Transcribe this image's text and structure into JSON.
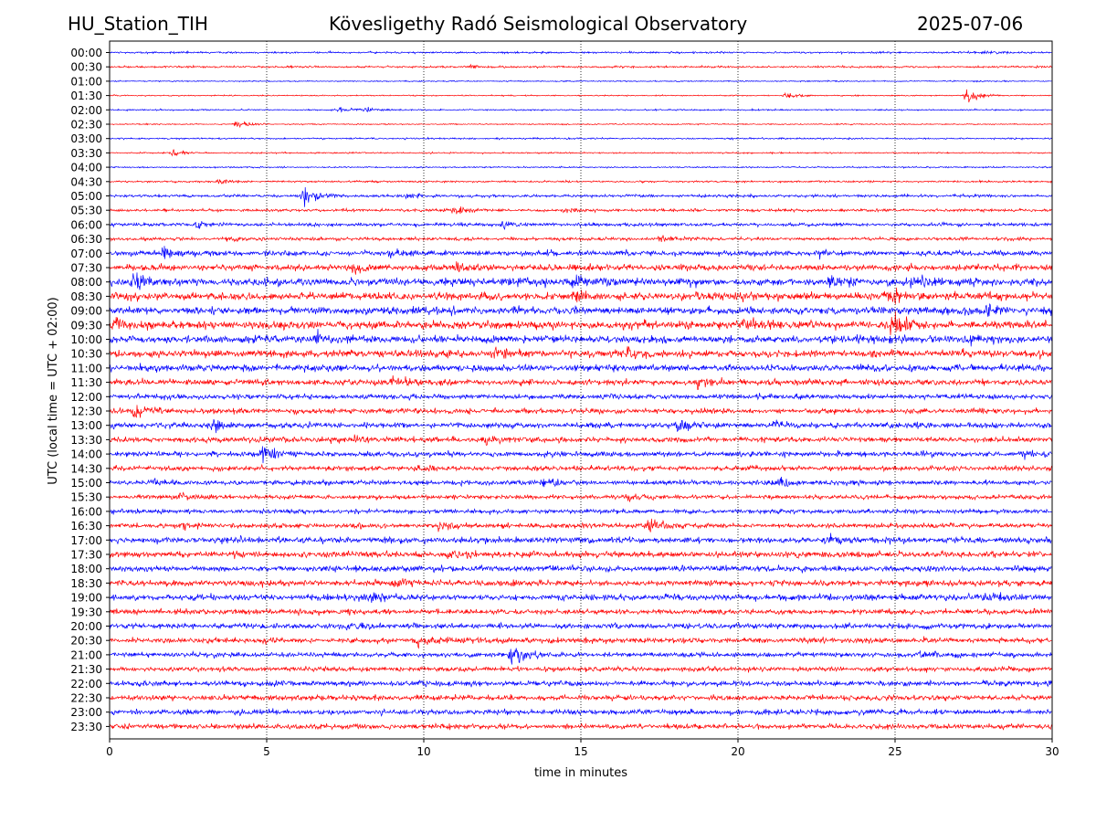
{
  "header": {
    "station": "HU_Station_TIH",
    "observatory": "Kövesligethy Radó Seismological Observatory",
    "date": "2025-07-06"
  },
  "chart_data": {
    "type": "line",
    "title": "Kövesligethy Radó Seismological Observatory",
    "xlabel": "time in minutes",
    "ylabel": "UTC (local time = UTC + 02:00)",
    "xlim": [
      0,
      30
    ],
    "xticks": [
      0,
      5,
      10,
      15,
      20,
      25,
      30
    ],
    "xtick_labels": [
      "0",
      "5",
      "10",
      "15",
      "20",
      "25",
      "30"
    ],
    "grid": "vertical dotted at 5, 10, 15, 20, 25",
    "row_labels": [
      "00:00",
      "00:30",
      "01:00",
      "01:30",
      "02:00",
      "02:30",
      "03:00",
      "03:30",
      "04:00",
      "04:30",
      "05:00",
      "05:30",
      "06:00",
      "06:30",
      "07:00",
      "07:30",
      "08:00",
      "08:30",
      "09:00",
      "09:30",
      "10:00",
      "10:30",
      "11:00",
      "11:30",
      "12:00",
      "12:30",
      "13:00",
      "13:30",
      "14:00",
      "14:30",
      "15:00",
      "15:30",
      "16:00",
      "16:30",
      "17:00",
      "17:30",
      "18:00",
      "18:30",
      "19:00",
      "19:30",
      "20:00",
      "20:30",
      "21:00",
      "21:30",
      "22:00",
      "22:30",
      "23:00",
      "23:30"
    ],
    "colors": [
      "#0000ff",
      "#ff0000"
    ],
    "noise_amplitude": [
      0.08,
      0.08,
      0.05,
      0.05,
      0.06,
      0.05,
      0.07,
      0.06,
      0.06,
      0.08,
      0.12,
      0.12,
      0.14,
      0.14,
      0.22,
      0.25,
      0.32,
      0.32,
      0.32,
      0.32,
      0.3,
      0.3,
      0.28,
      0.25,
      0.22,
      0.22,
      0.22,
      0.22,
      0.22,
      0.2,
      0.2,
      0.18,
      0.18,
      0.2,
      0.25,
      0.25,
      0.25,
      0.25,
      0.25,
      0.22,
      0.22,
      0.22,
      0.2,
      0.2,
      0.22,
      0.22,
      0.22,
      0.22
    ],
    "events": [
      {
        "row": "00:00",
        "t": 27.8,
        "amp": 0.15
      },
      {
        "row": "00:30",
        "t": 11.5,
        "amp": 0.15
      },
      {
        "row": "01:30",
        "t": 21.5,
        "amp": 0.25
      },
      {
        "row": "01:30",
        "t": 27.3,
        "amp": 0.7
      },
      {
        "row": "02:00",
        "t": 7.3,
        "amp": 0.3
      },
      {
        "row": "02:00",
        "t": 8.2,
        "amp": 0.2
      },
      {
        "row": "02:30",
        "t": 4.0,
        "amp": 0.45
      },
      {
        "row": "03:30",
        "t": 2.0,
        "amp": 0.3
      },
      {
        "row": "04:30",
        "t": 3.5,
        "amp": 0.2
      },
      {
        "row": "05:00",
        "t": 6.2,
        "amp": 0.8
      },
      {
        "row": "05:00",
        "t": 9.5,
        "amp": 0.2
      },
      {
        "row": "05:30",
        "t": 11.0,
        "amp": 0.35
      },
      {
        "row": "05:30",
        "t": 14.5,
        "amp": 0.3
      },
      {
        "row": "06:00",
        "t": 2.8,
        "amp": 0.35
      },
      {
        "row": "06:00",
        "t": 12.5,
        "amp": 0.3
      },
      {
        "row": "06:30",
        "t": 3.8,
        "amp": 0.3
      },
      {
        "row": "06:30",
        "t": 17.5,
        "amp": 0.3
      },
      {
        "row": "07:00",
        "t": 1.7,
        "amp": 0.35
      },
      {
        "row": "07:00",
        "t": 8.9,
        "amp": 0.35
      },
      {
        "row": "07:00",
        "t": 22.5,
        "amp": 0.35
      },
      {
        "row": "07:30",
        "t": 7.8,
        "amp": 0.4
      },
      {
        "row": "07:30",
        "t": 11.0,
        "amp": 0.35
      },
      {
        "row": "08:00",
        "t": 0.8,
        "amp": 0.8
      },
      {
        "row": "08:00",
        "t": 14.8,
        "amp": 0.4
      },
      {
        "row": "08:00",
        "t": 23.0,
        "amp": 0.55
      },
      {
        "row": "08:00",
        "t": 25.6,
        "amp": 0.5
      },
      {
        "row": "08:30",
        "t": 14.8,
        "amp": 0.4
      },
      {
        "row": "08:30",
        "t": 20.0,
        "amp": 0.4
      },
      {
        "row": "08:30",
        "t": 24.8,
        "amp": 0.45
      },
      {
        "row": "09:00",
        "t": 27.9,
        "amp": 0.35
      },
      {
        "row": "09:30",
        "t": 24.9,
        "amp": 1.2
      },
      {
        "row": "09:30",
        "t": 0.2,
        "amp": 0.4
      },
      {
        "row": "09:30",
        "t": 20.2,
        "amp": 0.35
      },
      {
        "row": "10:00",
        "t": 6.6,
        "amp": 0.5
      },
      {
        "row": "10:00",
        "t": 27.5,
        "amp": 0.35
      },
      {
        "row": "10:30",
        "t": 12.3,
        "amp": 0.45
      },
      {
        "row": "10:30",
        "t": 16.5,
        "amp": 0.45
      },
      {
        "row": "11:30",
        "t": 9.0,
        "amp": 0.35
      },
      {
        "row": "11:30",
        "t": 18.7,
        "amp": 0.35
      },
      {
        "row": "12:30",
        "t": 0.8,
        "amp": 0.75
      },
      {
        "row": "13:00",
        "t": 3.3,
        "amp": 0.6
      },
      {
        "row": "13:00",
        "t": 18.1,
        "amp": 0.95
      },
      {
        "row": "13:00",
        "t": 21.2,
        "amp": 0.45
      },
      {
        "row": "13:30",
        "t": 7.8,
        "amp": 0.3
      },
      {
        "row": "13:30",
        "t": 12.0,
        "amp": 0.4
      },
      {
        "row": "14:00",
        "t": 4.9,
        "amp": 0.8
      },
      {
        "row": "14:00",
        "t": 29.1,
        "amp": 0.3
      },
      {
        "row": "14:30",
        "t": 9.8,
        "amp": 0.35
      },
      {
        "row": "15:00",
        "t": 1.3,
        "amp": 0.35
      },
      {
        "row": "15:00",
        "t": 13.8,
        "amp": 0.4
      },
      {
        "row": "15:00",
        "t": 21.3,
        "amp": 0.45
      },
      {
        "row": "15:30",
        "t": 2.2,
        "amp": 0.25
      },
      {
        "row": "15:30",
        "t": 16.5,
        "amp": 0.35
      },
      {
        "row": "16:30",
        "t": 17.2,
        "amp": 0.6
      },
      {
        "row": "16:30",
        "t": 10.5,
        "amp": 0.35
      },
      {
        "row": "16:30",
        "t": 2.3,
        "amp": 0.3
      },
      {
        "row": "17:00",
        "t": 22.8,
        "amp": 0.35
      },
      {
        "row": "17:30",
        "t": 10.9,
        "amp": 0.35
      },
      {
        "row": "18:30",
        "t": 9.0,
        "amp": 0.35
      },
      {
        "row": "19:00",
        "t": 8.2,
        "amp": 0.55
      },
      {
        "row": "19:00",
        "t": 28.1,
        "amp": 0.35
      },
      {
        "row": "20:00",
        "t": 7.6,
        "amp": 0.3
      },
      {
        "row": "20:30",
        "t": 9.8,
        "amp": 0.5
      },
      {
        "row": "21:00",
        "t": 12.8,
        "amp": 0.9
      },
      {
        "row": "21:00",
        "t": 25.8,
        "amp": 0.3
      }
    ]
  }
}
